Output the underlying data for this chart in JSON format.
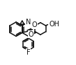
{
  "lc": "#111111",
  "lw": 1.1,
  "fs": 6.0,
  "figsize": [
    1.09,
    0.94
  ],
  "dpi": 100,
  "xlim": [
    0,
    109
  ],
  "ylim": [
    0,
    94
  ]
}
